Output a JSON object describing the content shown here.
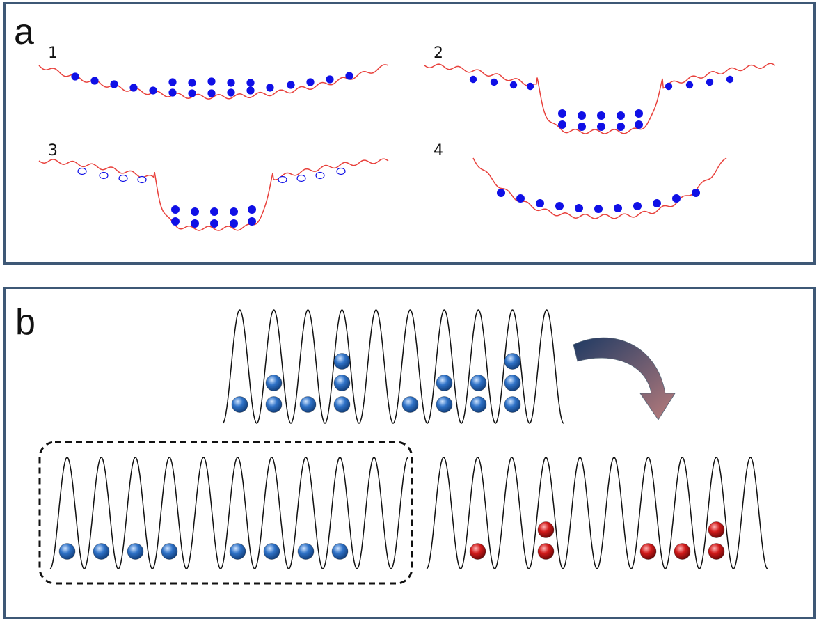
{
  "panel_a": {
    "label": "a",
    "stages": [
      {
        "number": "1",
        "type": "shallow",
        "atoms": "filled"
      },
      {
        "number": "2",
        "type": "dimple",
        "atoms": "filled"
      },
      {
        "number": "3",
        "type": "dimple",
        "atoms": "hollow-wings"
      },
      {
        "number": "4",
        "type": "deep",
        "atoms": "filled"
      }
    ]
  },
  "panel_b": {
    "label": "b",
    "lattice_top_occupation": [
      1,
      2,
      1,
      3,
      0,
      1,
      2,
      2,
      3,
      0
    ],
    "lattice_left_occupation": [
      1,
      1,
      1,
      1,
      0,
      1,
      1,
      1,
      1,
      0
    ],
    "lattice_right_occupation": [
      0,
      1,
      0,
      2,
      0,
      0,
      1,
      1,
      2,
      0
    ]
  },
  "colors": {
    "panel_border": "#3e5876",
    "trap_curve": "#e8413c",
    "atom_blue_flat": "#1010e6",
    "lattice_line": "#111111",
    "atom_blue_sphere": "#2f72c7",
    "atom_red_sphere": "#d11a1a",
    "dashed_box": "#111111",
    "arrow_gradient_start": "#1f3a63",
    "arrow_gradient_end": "#b87c7c"
  }
}
